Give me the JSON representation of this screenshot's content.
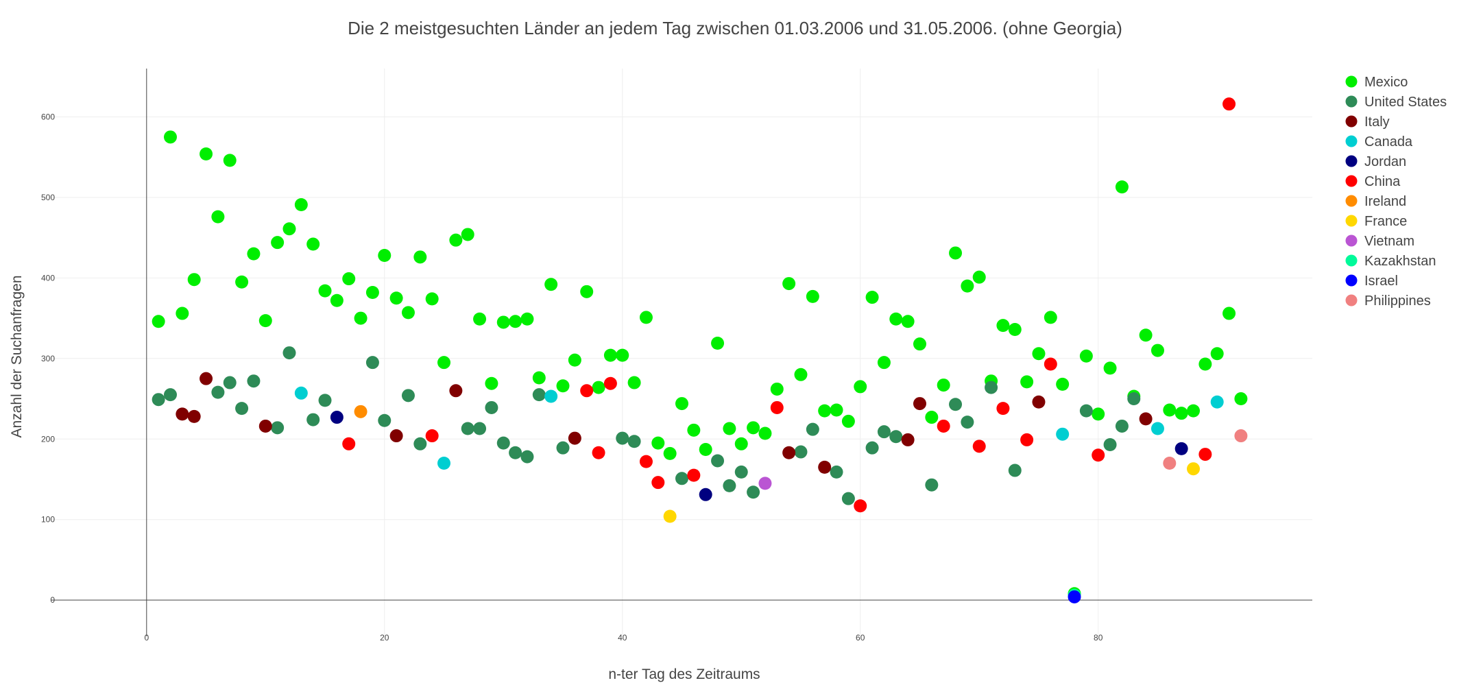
{
  "chart_data": {
    "type": "scatter",
    "title": "Die 2 meistgesuchten Länder an jedem Tag zwischen 01.03.2006 und 31.05.2006. (ohne Georgia)",
    "xlabel": "n-ter Tag des Zeitraums",
    "ylabel": "Anzahl der Suchanfragen",
    "xlim": [
      -8,
      98
    ],
    "ylim": [
      -45,
      660
    ],
    "xticks": [
      0,
      20,
      40,
      60,
      80
    ],
    "yticks": [
      0,
      100,
      200,
      300,
      400,
      500,
      600
    ],
    "grid": true,
    "legend_position": "top-right",
    "series": [
      {
        "name": "Mexico",
        "color": "#00ee00",
        "points": [
          [
            1,
            346
          ],
          [
            2,
            575
          ],
          [
            3,
            356
          ],
          [
            4,
            398
          ],
          [
            5,
            554
          ],
          [
            6,
            476
          ],
          [
            7,
            546
          ],
          [
            8,
            395
          ],
          [
            9,
            430
          ],
          [
            10,
            347
          ],
          [
            11,
            444
          ],
          [
            12,
            461
          ],
          [
            13,
            491
          ],
          [
            14,
            442
          ],
          [
            15,
            384
          ],
          [
            16,
            372
          ],
          [
            17,
            399
          ],
          [
            18,
            350
          ],
          [
            19,
            382
          ],
          [
            20,
            428
          ],
          [
            21,
            375
          ],
          [
            22,
            357
          ],
          [
            23,
            426
          ],
          [
            24,
            374
          ],
          [
            25,
            295
          ],
          [
            26,
            447
          ],
          [
            27,
            454
          ],
          [
            28,
            349
          ],
          [
            29,
            269
          ],
          [
            30,
            345
          ],
          [
            31,
            346
          ],
          [
            32,
            349
          ],
          [
            33,
            276
          ],
          [
            34,
            392
          ],
          [
            35,
            266
          ],
          [
            36,
            298
          ],
          [
            37,
            383
          ],
          [
            38,
            264
          ],
          [
            39,
            304
          ],
          [
            40,
            304
          ],
          [
            41,
            270
          ],
          [
            42,
            351
          ],
          [
            43,
            195
          ],
          [
            44,
            182
          ],
          [
            45,
            244
          ],
          [
            46,
            211
          ],
          [
            47,
            187
          ],
          [
            48,
            319
          ],
          [
            49,
            213
          ],
          [
            50,
            194
          ],
          [
            51,
            214
          ],
          [
            52,
            207
          ],
          [
            53,
            262
          ],
          [
            54,
            393
          ],
          [
            55,
            280
          ],
          [
            56,
            377
          ],
          [
            57,
            235
          ],
          [
            58,
            236
          ],
          [
            59,
            222
          ],
          [
            60,
            265
          ],
          [
            61,
            376
          ],
          [
            62,
            295
          ],
          [
            63,
            349
          ],
          [
            64,
            346
          ],
          [
            65,
            318
          ],
          [
            66,
            227
          ],
          [
            67,
            267
          ],
          [
            68,
            431
          ],
          [
            69,
            390
          ],
          [
            70,
            401
          ],
          [
            71,
            272
          ],
          [
            72,
            341
          ],
          [
            73,
            336
          ],
          [
            74,
            271
          ],
          [
            75,
            306
          ],
          [
            76,
            351
          ],
          [
            77,
            268
          ],
          [
            78,
            8
          ],
          [
            79,
            303
          ],
          [
            80,
            231
          ],
          [
            81,
            288
          ],
          [
            82,
            513
          ],
          [
            83,
            253
          ],
          [
            84,
            329
          ],
          [
            85,
            310
          ],
          [
            86,
            236
          ],
          [
            87,
            232
          ],
          [
            88,
            235
          ],
          [
            89,
            293
          ],
          [
            90,
            306
          ],
          [
            91,
            356
          ],
          [
            92,
            250
          ]
        ]
      },
      {
        "name": "United States",
        "color": "#2e8b57",
        "points": [
          [
            1,
            249
          ],
          [
            2,
            255
          ],
          [
            6,
            258
          ],
          [
            7,
            270
          ],
          [
            8,
            238
          ],
          [
            9,
            272
          ],
          [
            11,
            214
          ],
          [
            12,
            307
          ],
          [
            14,
            224
          ],
          [
            15,
            248
          ],
          [
            19,
            295
          ],
          [
            20,
            223
          ],
          [
            22,
            254
          ],
          [
            23,
            194
          ],
          [
            27,
            213
          ],
          [
            28,
            213
          ],
          [
            29,
            239
          ],
          [
            30,
            195
          ],
          [
            31,
            183
          ],
          [
            32,
            178
          ],
          [
            33,
            255
          ],
          [
            35,
            189
          ],
          [
            40,
            201
          ],
          [
            41,
            197
          ],
          [
            45,
            151
          ],
          [
            48,
            173
          ],
          [
            49,
            142
          ],
          [
            50,
            159
          ],
          [
            51,
            134
          ],
          [
            55,
            184
          ],
          [
            56,
            212
          ],
          [
            58,
            159
          ],
          [
            59,
            126
          ],
          [
            61,
            189
          ],
          [
            62,
            209
          ],
          [
            63,
            203
          ],
          [
            66,
            143
          ],
          [
            68,
            243
          ],
          [
            69,
            221
          ],
          [
            71,
            264
          ],
          [
            73,
            161
          ],
          [
            79,
            235
          ],
          [
            81,
            193
          ],
          [
            82,
            216
          ],
          [
            83,
            250
          ]
        ]
      },
      {
        "name": "Italy",
        "color": "#800000",
        "points": [
          [
            3,
            231
          ],
          [
            4,
            228
          ],
          [
            5,
            275
          ],
          [
            10,
            216
          ],
          [
            21,
            204
          ],
          [
            26,
            260
          ],
          [
            36,
            201
          ],
          [
            54,
            183
          ],
          [
            57,
            165
          ],
          [
            64,
            199
          ],
          [
            65,
            244
          ],
          [
            75,
            246
          ],
          [
            84,
            225
          ]
        ]
      },
      {
        "name": "Canada",
        "color": "#00ced1",
        "points": [
          [
            13,
            257
          ],
          [
            25,
            170
          ],
          [
            34,
            253
          ],
          [
            77,
            206
          ],
          [
            85,
            213
          ],
          [
            90,
            246
          ]
        ]
      },
      {
        "name": "Jordan",
        "color": "#000080",
        "points": [
          [
            16,
            227
          ],
          [
            47,
            131
          ],
          [
            87,
            188
          ]
        ]
      },
      {
        "name": "China",
        "color": "#ff0000",
        "points": [
          [
            17,
            194
          ],
          [
            24,
            204
          ],
          [
            37,
            260
          ],
          [
            38,
            183
          ],
          [
            39,
            269
          ],
          [
            42,
            172
          ],
          [
            43,
            146
          ],
          [
            46,
            155
          ],
          [
            53,
            239
          ],
          [
            60,
            117
          ],
          [
            67,
            216
          ],
          [
            70,
            191
          ],
          [
            72,
            238
          ],
          [
            74,
            199
          ],
          [
            76,
            293
          ],
          [
            80,
            180
          ],
          [
            89,
            181
          ],
          [
            91,
            616
          ]
        ]
      },
      {
        "name": "Ireland",
        "color": "#ff8c00",
        "points": [
          [
            18,
            234
          ]
        ]
      },
      {
        "name": "France",
        "color": "#ffd700",
        "points": [
          [
            44,
            104
          ],
          [
            88,
            163
          ]
        ]
      },
      {
        "name": "Vietnam",
        "color": "#ba55d3",
        "points": [
          [
            52,
            145
          ]
        ]
      },
      {
        "name": "Kazakhstan",
        "color": "#00fa9a",
        "points": [
          [
            78,
            6
          ]
        ]
      },
      {
        "name": "Israel",
        "color": "#0000ff",
        "points": [
          [
            78,
            4
          ]
        ]
      },
      {
        "name": "Philippines",
        "color": "#f08080",
        "points": [
          [
            86,
            170
          ],
          [
            92,
            204
          ]
        ]
      }
    ]
  }
}
